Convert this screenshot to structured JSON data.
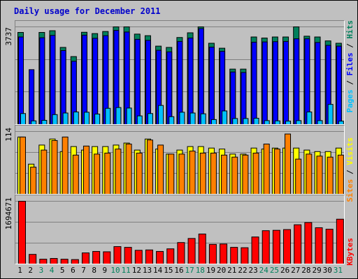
{
  "title": "Daily usage for December 2011",
  "legend": {
    "pages": "Pages",
    "files": "Files",
    "hits": "Hits",
    "sites": "Sites",
    "visits": "Visits",
    "kbytes": "KBytes",
    "separator": " / "
  },
  "colors": {
    "hits": "#00805c",
    "files": "#0000ff",
    "pages": "#00c0ff",
    "visits": "#ffff00",
    "sites": "#ff8000",
    "kbytes": "#ff0000",
    "weekend_label": "#00805c",
    "weekday_label": "#000000"
  },
  "chart_data": {
    "type": "bar",
    "days": [
      "1",
      "2",
      "3",
      "4",
      "5",
      "6",
      "7",
      "8",
      "9",
      "10",
      "11",
      "12",
      "13",
      "14",
      "15",
      "16",
      "17",
      "18",
      "19",
      "20",
      "21",
      "22",
      "23",
      "24",
      "25",
      "26",
      "27",
      "28",
      "29",
      "30",
      "31"
    ],
    "weekend_days": [
      "3",
      "4",
      "10",
      "11",
      "17",
      "18",
      "24",
      "25",
      "31"
    ],
    "scale_labels": {
      "hits_max": "3737",
      "visits_max": "114",
      "kbytes_max": "1694671"
    },
    "hits_ylim": [
      0,
      3737
    ],
    "visits_ylim": [
      0,
      114
    ],
    "kbytes_ylim": [
      0,
      1694671
    ],
    "series_top": [
      {
        "name": "Hits",
        "values": [
          3524,
          0,
          3524,
          3590,
          2951,
          2600,
          3530,
          3480,
          3560,
          3737,
          3737,
          3460,
          3400,
          3000,
          2950,
          3330,
          3510,
          3737,
          3110,
          2920,
          2120,
          2120,
          3350,
          3310,
          3350,
          3350,
          3737,
          3380,
          3350,
          3200,
          3110
        ]
      },
      {
        "name": "Files",
        "values": [
          3350,
          2100,
          3320,
          3410,
          2830,
          2420,
          3420,
          3300,
          3400,
          3600,
          3540,
          3260,
          3220,
          2840,
          2780,
          3180,
          3310,
          3670,
          2960,
          2800,
          2010,
          1990,
          3150,
          3160,
          3170,
          3180,
          3280,
          3280,
          3140,
          3030,
          3000
        ]
      },
      {
        "name": "Pages",
        "values": [
          420,
          140,
          160,
          380,
          440,
          480,
          470,
          400,
          620,
          650,
          630,
          330,
          420,
          730,
          300,
          470,
          440,
          410,
          190,
          520,
          230,
          230,
          240,
          150,
          140,
          130,
          150,
          480,
          150,
          770,
          130
        ]
      }
    ],
    "series_mid": [
      {
        "name": "Visits",
        "values": [
          114,
          60,
          98,
          110,
          85,
          95,
          88,
          95,
          95,
          98,
          102,
          88,
          110,
          90,
          80,
          88,
          95,
          95,
          92,
          90,
          80,
          80,
          92,
          90,
          92,
          92,
          92,
          88,
          85,
          85,
          92
        ]
      },
      {
        "name": "Sites",
        "values": [
          114,
          54,
          88,
          107,
          114,
          78,
          96,
          80,
          82,
          90,
          100,
          82,
          108,
          98,
          80,
          80,
          86,
          82,
          82,
          78,
          74,
          78,
          82,
          100,
          90,
          120,
          70,
          80,
          76,
          74,
          78
        ]
      }
    ],
    "series_bot": [
      {
        "name": "KBytes",
        "values": [
          1694671,
          260000,
          130000,
          150000,
          130000,
          120000,
          300000,
          340000,
          330000,
          470000,
          450000,
          370000,
          380000,
          340000,
          410000,
          580000,
          690000,
          810000,
          530000,
          540000,
          450000,
          440000,
          730000,
          900000,
          910000,
          930000,
          1060000,
          1120000,
          980000,
          940000,
          1210000
        ]
      }
    ]
  }
}
